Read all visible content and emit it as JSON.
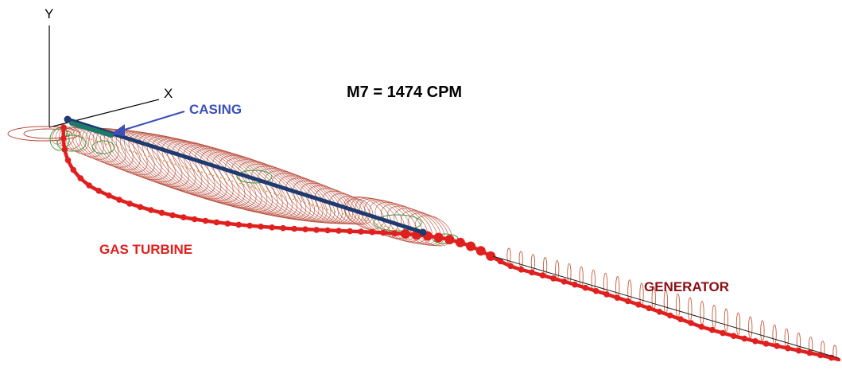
{
  "title": "M7 = 1474 CPM",
  "labels": {
    "casing": "CASING",
    "gas_turbine": "GAS TURBINE",
    "generator": "GENERATOR"
  },
  "axes": {
    "y": "Y",
    "x": "X"
  },
  "colors": {
    "background": "#ffffff",
    "orbit_casing": "#b84a3a",
    "orbit_generator": "#c55a3a",
    "orbit_green": "#3a9a3a",
    "deflection_line": "#e0201e",
    "casing_shaft": "#1e3a6e",
    "casing_label": "#3a4fb8",
    "gas_turbine_label": "#e0201e",
    "generator_label": "#8a0e12",
    "axis": "#000000"
  }
}
